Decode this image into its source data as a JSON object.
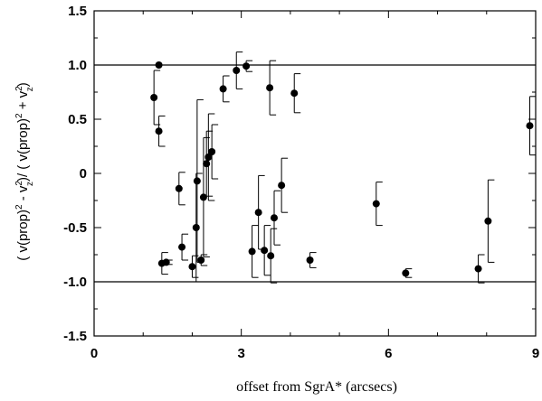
{
  "chart_data": {
    "type": "scatter",
    "xlabel": "offset from SgrA* (arcsecs)",
    "ylabel": {
      "parts": [
        "( v(prop)",
        "2",
        " - v",
        "2",
        "z",
        ")/ ( v(prop)",
        "2",
        " + v",
        "2",
        "z",
        ")"
      ]
    },
    "xlim": [
      0,
      9
    ],
    "ylim": [
      -1.5,
      1.5
    ],
    "xticks": [
      0,
      3,
      6,
      9
    ],
    "xtick_labels": [
      "0",
      "3",
      "6",
      "9"
    ],
    "yticks": [
      -1.5,
      -1.0,
      -0.5,
      0,
      0.5,
      1.0,
      1.5
    ],
    "ytick_labels": [
      "-1.5",
      "-1.0",
      "-0.5",
      "0",
      "0.5",
      "1.0",
      "1.5"
    ],
    "reference_lines": [
      1.0,
      -1.0
    ],
    "grid": false,
    "points": [
      {
        "x": 1.22,
        "y": 0.7,
        "err_lo": 0.25,
        "err_hi": 0.25
      },
      {
        "x": 1.32,
        "y": 1.0,
        "err_lo": 0.0,
        "err_hi": 0.0
      },
      {
        "x": 1.32,
        "y": 0.39,
        "err_lo": 0.14,
        "err_hi": 0.14
      },
      {
        "x": 1.38,
        "y": -0.83,
        "err_lo": 0.1,
        "err_hi": 0.1
      },
      {
        "x": 1.47,
        "y": -0.82,
        "err_lo": 0.02,
        "err_hi": 0.02
      },
      {
        "x": 1.73,
        "y": -0.14,
        "err_lo": 0.15,
        "err_hi": 0.15
      },
      {
        "x": 1.79,
        "y": -0.68,
        "err_lo": 0.12,
        "err_hi": 0.12
      },
      {
        "x": 2.0,
        "y": -0.86,
        "err_lo": 0.1,
        "err_hi": 0.1
      },
      {
        "x": 2.08,
        "y": -0.5,
        "err_lo": 0.5,
        "err_hi": 0.5
      },
      {
        "x": 2.1,
        "y": -0.07,
        "err_lo": 0.75,
        "err_hi": 0.75
      },
      {
        "x": 2.18,
        "y": -0.8,
        "err_lo": 0.05,
        "err_hi": 0.05
      },
      {
        "x": 2.23,
        "y": -0.22,
        "err_lo": 0.55,
        "err_hi": 0.55
      },
      {
        "x": 2.29,
        "y": 0.09,
        "err_lo": 0.3,
        "err_hi": 0.3
      },
      {
        "x": 2.33,
        "y": 0.15,
        "err_lo": 0.4,
        "err_hi": 0.4
      },
      {
        "x": 2.4,
        "y": 0.2,
        "err_lo": 0.25,
        "err_hi": 0.25
      },
      {
        "x": 2.63,
        "y": 0.78,
        "err_lo": 0.12,
        "err_hi": 0.12
      },
      {
        "x": 2.9,
        "y": 0.95,
        "err_lo": 0.17,
        "err_hi": 0.17
      },
      {
        "x": 3.1,
        "y": 0.99,
        "err_lo": 0.05,
        "err_hi": 0.05
      },
      {
        "x": 3.22,
        "y": -0.72,
        "err_lo": 0.24,
        "err_hi": 0.24
      },
      {
        "x": 3.35,
        "y": -0.36,
        "err_lo": 0.34,
        "err_hi": 0.34
      },
      {
        "x": 3.47,
        "y": -0.71,
        "err_lo": 0.23,
        "err_hi": 0.23
      },
      {
        "x": 3.58,
        "y": 0.79,
        "err_lo": 0.25,
        "err_hi": 0.25
      },
      {
        "x": 3.6,
        "y": -0.76,
        "err_lo": 0.25,
        "err_hi": 0.25
      },
      {
        "x": 3.67,
        "y": -0.41,
        "err_lo": 0.25,
        "err_hi": 0.25
      },
      {
        "x": 3.82,
        "y": -0.11,
        "err_lo": 0.25,
        "err_hi": 0.25
      },
      {
        "x": 4.08,
        "y": 0.74,
        "err_lo": 0.18,
        "err_hi": 0.18
      },
      {
        "x": 4.4,
        "y": -0.8,
        "err_lo": 0.07,
        "err_hi": 0.07
      },
      {
        "x": 5.75,
        "y": -0.28,
        "err_lo": 0.2,
        "err_hi": 0.2
      },
      {
        "x": 6.35,
        "y": -0.92,
        "err_lo": 0.04,
        "err_hi": 0.04
      },
      {
        "x": 7.83,
        "y": -0.88,
        "err_lo": 0.13,
        "err_hi": 0.13
      },
      {
        "x": 8.03,
        "y": -0.44,
        "err_lo": 0.38,
        "err_hi": 0.38
      },
      {
        "x": 8.88,
        "y": 0.44,
        "err_lo": 0.27,
        "err_hi": 0.27
      }
    ]
  }
}
